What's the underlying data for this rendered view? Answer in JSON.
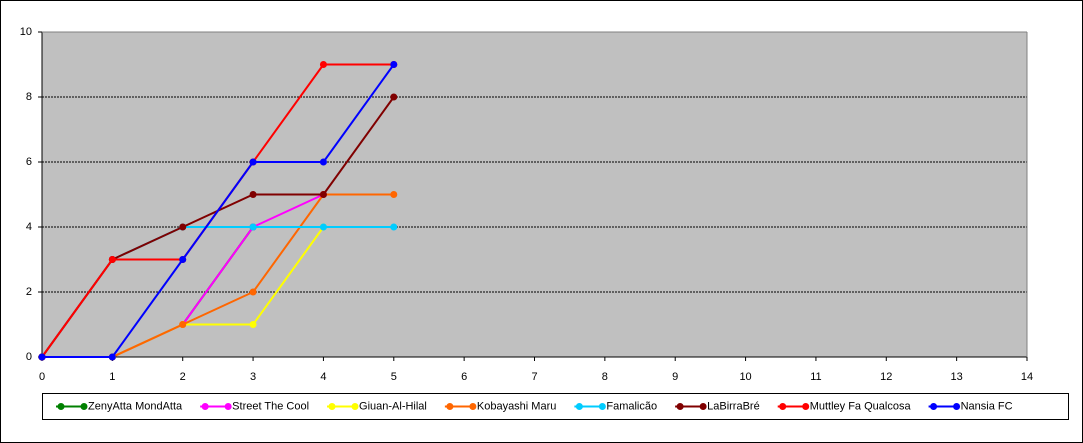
{
  "chart_data": {
    "type": "line",
    "x": [
      0,
      1,
      2,
      3,
      4,
      5
    ],
    "xlim": [
      0,
      14
    ],
    "xticks": [
      0,
      1,
      2,
      3,
      4,
      5,
      6,
      7,
      8,
      9,
      10,
      11,
      12,
      13,
      14
    ],
    "ylim": [
      0,
      10
    ],
    "yticks": [
      0,
      2,
      4,
      6,
      8,
      10
    ],
    "grid": true,
    "legend": "bottom",
    "series": [
      {
        "name": "ZenyAtta MondAtta",
        "color": "#008000",
        "values": [
          0,
          0,
          1,
          4,
          null,
          null
        ]
      },
      {
        "name": "Street The Cool",
        "color": "#ff00ff",
        "values": [
          0,
          0,
          1,
          4,
          5,
          null
        ]
      },
      {
        "name": "Giuan-Al-Hilal",
        "color": "#ffff00",
        "values": [
          0,
          0,
          1,
          1,
          4,
          null
        ]
      },
      {
        "name": "Kobayashi Maru",
        "color": "#ff6600",
        "values": [
          0,
          0,
          1,
          2,
          5,
          5
        ]
      },
      {
        "name": "Famalicão",
        "color": "#00ccff",
        "values": [
          0,
          3,
          4,
          4,
          4,
          4
        ]
      },
      {
        "name": "LaBirraBré",
        "color": "#800000",
        "values": [
          0,
          3,
          4,
          5,
          5,
          8
        ]
      },
      {
        "name": "Muttley Fa Qualcosa",
        "color": "#ff0000",
        "values": [
          0,
          3,
          3,
          6,
          9,
          9
        ]
      },
      {
        "name": "Nansia FC",
        "color": "#0000ff",
        "values": [
          0,
          0,
          3,
          6,
          6,
          9
        ]
      }
    ]
  }
}
